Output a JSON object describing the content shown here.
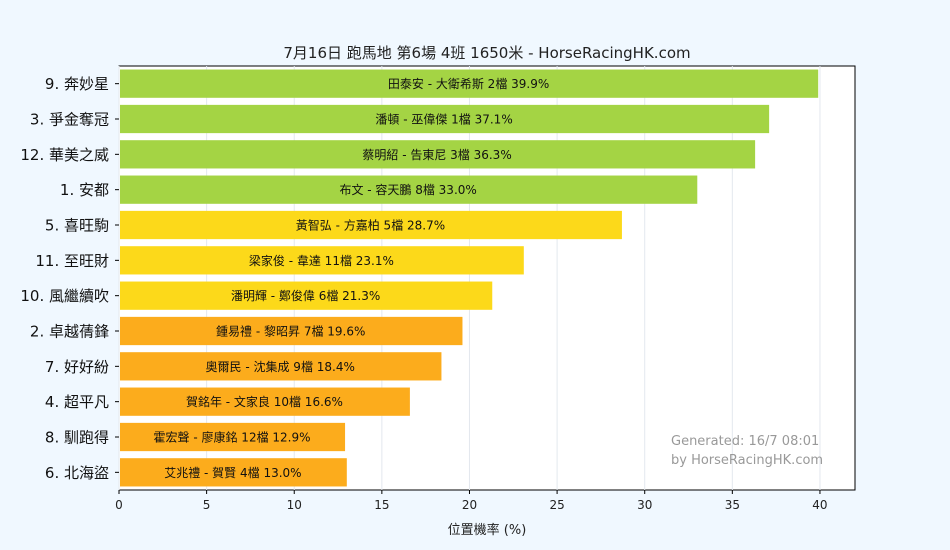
{
  "chart_data": {
    "type": "bar",
    "orientation": "horizontal",
    "title": "7月16日  跑馬地  第6場  4班  1650米 - HorseRacingHK.com",
    "xlabel": "位置機率 (%)",
    "ylabel": "",
    "xlim": [
      0,
      42
    ],
    "xticks": [
      0,
      5,
      10,
      15,
      20,
      25,
      30,
      35,
      40
    ],
    "grid": "vertical",
    "categories": [
      "9. 奔妙星",
      "3. 爭金奪冠",
      "12. 華美之威",
      "1. 安都",
      "5. 喜旺駒",
      "11. 至旺財",
      "10. 風繼續吹",
      "2. 卓越蒨鋒",
      "7. 好好紛",
      "4. 超平凡",
      "8. 馴跑得",
      "6. 北海盜"
    ],
    "values": [
      39.9,
      37.1,
      36.3,
      33.0,
      28.7,
      23.1,
      21.3,
      19.6,
      18.4,
      16.6,
      12.9,
      13.0
    ],
    "bar_labels": [
      "田泰安 - 大衛希斯 2檔  39.9%",
      "潘頓 - 巫偉傑 1檔  37.1%",
      "蔡明紹 - 告東尼 3檔  36.3%",
      "布文 - 容天鵬 8檔  33.0%",
      "黃智弘 - 方嘉柏 5檔  28.7%",
      "梁家俊 - 韋達 11檔  23.1%",
      "潘明輝 - 鄭俊偉 6檔  21.3%",
      "鍾易禮 - 黎昭昇 7檔  19.6%",
      "奧爾民 - 沈集成 9檔  18.4%",
      "賀銘年 - 文家良 10檔  16.6%",
      "霍宏聲 - 廖康銘 12檔  12.9%",
      "艾兆禮 - 賀賢 4檔  13.0%"
    ],
    "bar_colors": [
      "#a4d444",
      "#a4d444",
      "#a4d444",
      "#a4d444",
      "#fcd91a",
      "#fcd91a",
      "#fcd91a",
      "#fcac1c",
      "#fcac1c",
      "#fcac1c",
      "#fcac1c",
      "#fcac1c"
    ],
    "watermark": [
      "Generated: 16/7 08:01",
      "by HorseRacingHK.com"
    ]
  }
}
